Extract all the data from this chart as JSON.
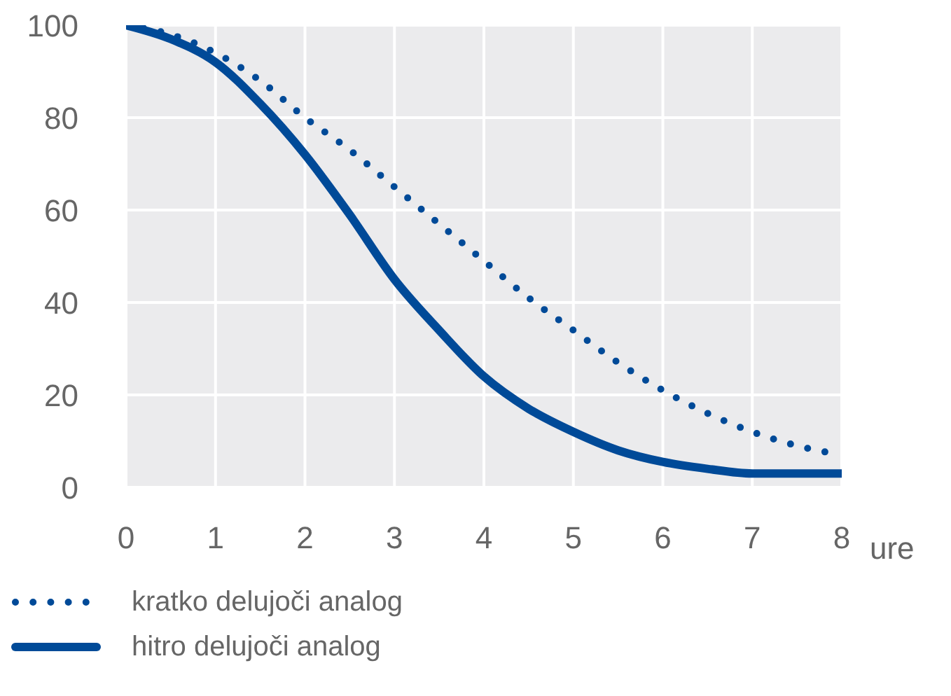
{
  "chart_data": {
    "type": "line",
    "xlabel": "ure",
    "x": [
      0,
      0.5,
      1,
      1.5,
      2,
      2.5,
      3,
      3.5,
      4,
      4.5,
      5,
      5.5,
      6,
      6.5,
      7,
      7.5,
      8
    ],
    "series": [
      {
        "name": "kratko delujoči analog",
        "color": "#004a98",
        "line_style": "dotted",
        "values": [
          100,
          98,
          94,
          88,
          80,
          73,
          65,
          57,
          49,
          41,
          34,
          27,
          21,
          16,
          12,
          9,
          7
        ]
      },
      {
        "name": "hitro delujoči analog",
        "color": "#004a98",
        "line_style": "solid",
        "values": [
          100,
          97,
          92,
          83,
          72,
          59,
          45,
          34,
          24,
          17,
          12,
          8,
          5.5,
          4,
          3,
          3,
          3
        ]
      }
    ],
    "xlim": [
      0,
      8
    ],
    "xticks": [
      0,
      1,
      2,
      3,
      4,
      5,
      6,
      7,
      8
    ],
    "ylim": [
      0,
      100
    ],
    "yticks": [
      0,
      20,
      40,
      60,
      80,
      100
    ],
    "grid": true,
    "legend": "bottom",
    "marker": "none"
  }
}
